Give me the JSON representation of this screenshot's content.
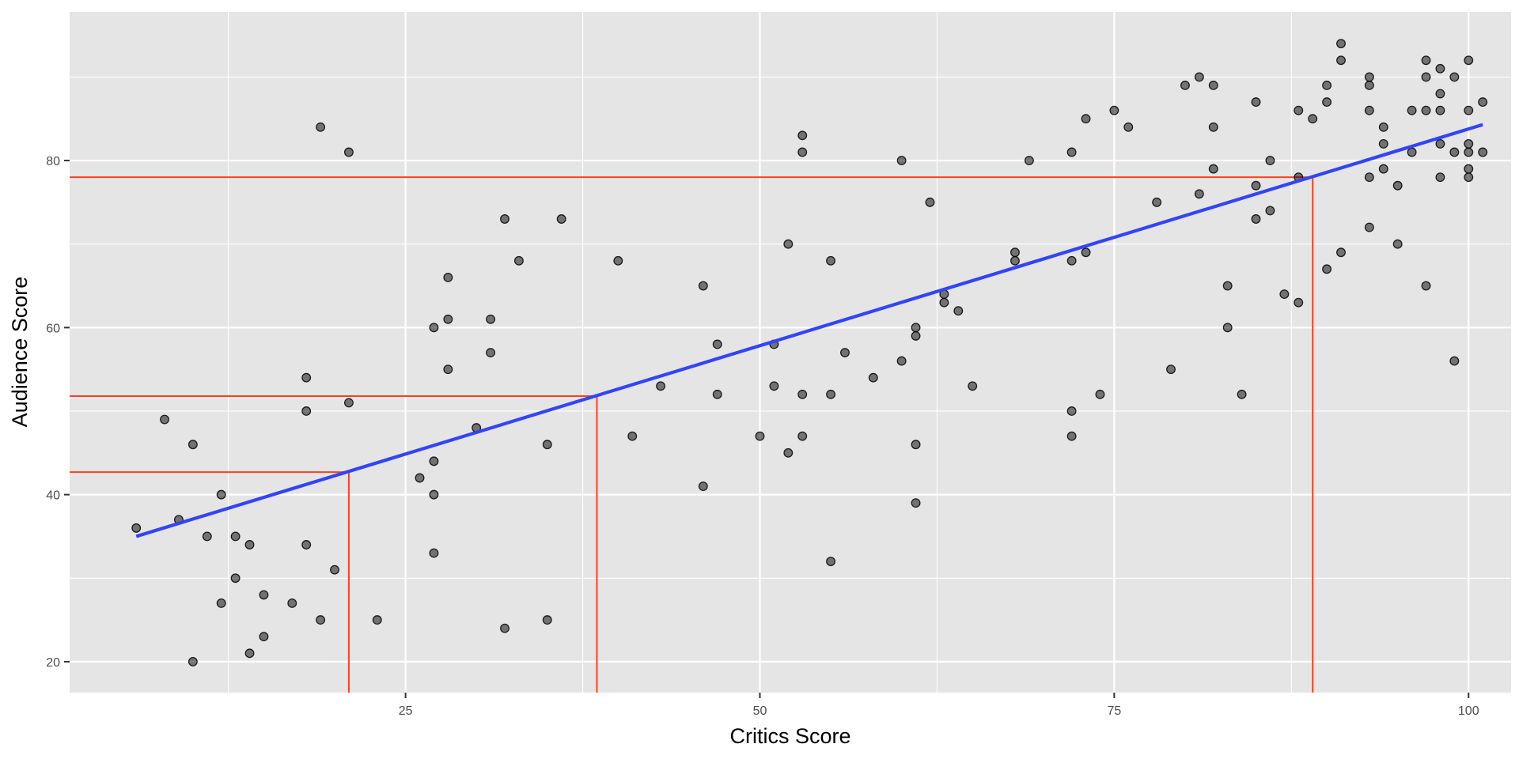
{
  "chart_data": {
    "type": "scatter",
    "xlabel": "Critics Score",
    "ylabel": "Audience Score",
    "xlim": [
      1.3,
      103
    ],
    "ylim": [
      16.3,
      97.8
    ],
    "x_ticks": [
      25,
      50,
      75,
      100
    ],
    "y_ticks": [
      20,
      40,
      60,
      80
    ],
    "grid": true,
    "colors": {
      "panel_background": "#e5e5e5",
      "grid": "#ffffff",
      "points": "#000000",
      "regression_line": "#3245f5",
      "guide_lines": "#ff3f1f"
    },
    "series": [
      {
        "points": [
          [
            6,
            36
          ],
          [
            8,
            49
          ],
          [
            9,
            37
          ],
          [
            10,
            46
          ],
          [
            10,
            20
          ],
          [
            11,
            35
          ],
          [
            12,
            40
          ],
          [
            12,
            27
          ],
          [
            13,
            35
          ],
          [
            13,
            30
          ],
          [
            14,
            34
          ],
          [
            14,
            21
          ],
          [
            15,
            28
          ],
          [
            15,
            23
          ],
          [
            17,
            27
          ],
          [
            18,
            54
          ],
          [
            18,
            50
          ],
          [
            18,
            34
          ],
          [
            19,
            84
          ],
          [
            19,
            25
          ],
          [
            20,
            31
          ],
          [
            21,
            81
          ],
          [
            21,
            51
          ],
          [
            23,
            25
          ],
          [
            26,
            42
          ],
          [
            27,
            60
          ],
          [
            27,
            44
          ],
          [
            27,
            40
          ],
          [
            27,
            33
          ],
          [
            28,
            66
          ],
          [
            28,
            61
          ],
          [
            28,
            55
          ],
          [
            30,
            48
          ],
          [
            31,
            61
          ],
          [
            31,
            57
          ],
          [
            32,
            73
          ],
          [
            32,
            24
          ],
          [
            33,
            68
          ],
          [
            35,
            46
          ],
          [
            35,
            25
          ],
          [
            36,
            73
          ],
          [
            40,
            68
          ],
          [
            41,
            47
          ],
          [
            43,
            53
          ],
          [
            46,
            65
          ],
          [
            46,
            41
          ],
          [
            47,
            58
          ],
          [
            47,
            52
          ],
          [
            50,
            47
          ],
          [
            51,
            58
          ],
          [
            51,
            53
          ],
          [
            52,
            70
          ],
          [
            52,
            45
          ],
          [
            53,
            83
          ],
          [
            53,
            81
          ],
          [
            53,
            52
          ],
          [
            53,
            47
          ],
          [
            55,
            68
          ],
          [
            55,
            52
          ],
          [
            55,
            32
          ],
          [
            56,
            57
          ],
          [
            58,
            54
          ],
          [
            60,
            80
          ],
          [
            60,
            56
          ],
          [
            61,
            60
          ],
          [
            61,
            59
          ],
          [
            61,
            46
          ],
          [
            61,
            39
          ],
          [
            62,
            75
          ],
          [
            63,
            64
          ],
          [
            63,
            63
          ],
          [
            64,
            62
          ],
          [
            65,
            53
          ],
          [
            68,
            69
          ],
          [
            68,
            68
          ],
          [
            69,
            80
          ],
          [
            72,
            81
          ],
          [
            72,
            68
          ],
          [
            72,
            50
          ],
          [
            72,
            47
          ],
          [
            73,
            85
          ],
          [
            73,
            69
          ],
          [
            74,
            52
          ],
          [
            75,
            86
          ],
          [
            76,
            84
          ],
          [
            78,
            75
          ],
          [
            79,
            55
          ],
          [
            80,
            89
          ],
          [
            81,
            90
          ],
          [
            81,
            76
          ],
          [
            82,
            89
          ],
          [
            82,
            84
          ],
          [
            82,
            79
          ],
          [
            83,
            65
          ],
          [
            83,
            60
          ],
          [
            84,
            52
          ],
          [
            85,
            87
          ],
          [
            85,
            77
          ],
          [
            85,
            73
          ],
          [
            86,
            80
          ],
          [
            86,
            74
          ],
          [
            87,
            64
          ],
          [
            88,
            86
          ],
          [
            88,
            78
          ],
          [
            88,
            63
          ],
          [
            89,
            85
          ],
          [
            90,
            89
          ],
          [
            90,
            87
          ],
          [
            90,
            67
          ],
          [
            91,
            94
          ],
          [
            91,
            92
          ],
          [
            91,
            69
          ],
          [
            93,
            90
          ],
          [
            93,
            89
          ],
          [
            93,
            86
          ],
          [
            93,
            78
          ],
          [
            93,
            72
          ],
          [
            94,
            84
          ],
          [
            94,
            82
          ],
          [
            94,
            79
          ],
          [
            95,
            77
          ],
          [
            95,
            70
          ],
          [
            96,
            86
          ],
          [
            96,
            81
          ],
          [
            97,
            92
          ],
          [
            97,
            90
          ],
          [
            97,
            86
          ],
          [
            97,
            65
          ],
          [
            98,
            91
          ],
          [
            98,
            88
          ],
          [
            98,
            86
          ],
          [
            98,
            82
          ],
          [
            98,
            78
          ],
          [
            99,
            90
          ],
          [
            99,
            81
          ],
          [
            99,
            56
          ],
          [
            100,
            92
          ],
          [
            100,
            86
          ],
          [
            100,
            82
          ],
          [
            100,
            81
          ],
          [
            100,
            79
          ],
          [
            100,
            78
          ],
          [
            101,
            87
          ],
          [
            101,
            81
          ]
        ]
      }
    ],
    "regression_line": [
      [
        6,
        35
      ],
      [
        101,
        84.3
      ]
    ],
    "predictions": [
      {
        "x": 21,
        "y": 42.7
      },
      {
        "x": 38.5,
        "y": 51.8
      },
      {
        "x": 89,
        "y": 78
      }
    ]
  }
}
